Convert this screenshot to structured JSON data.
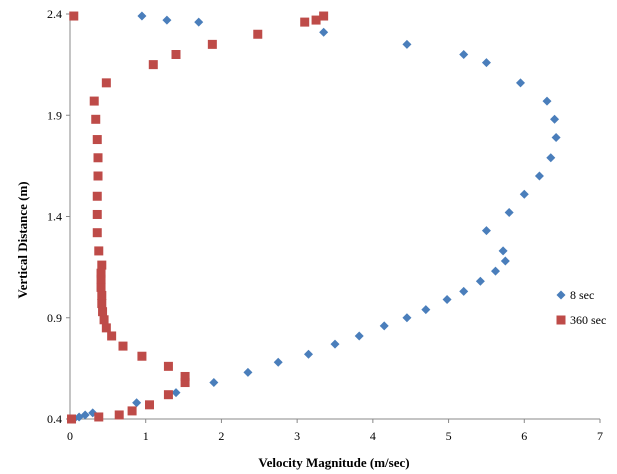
{
  "chart_data": {
    "type": "scatter",
    "xlabel": "Velocity Magnitude  (m/sec)",
    "ylabel": "Vertical Distance (m)",
    "xlim": [
      0,
      7
    ],
    "ylim": [
      0.4,
      2.4
    ],
    "xticks": [
      "0",
      "1",
      "2",
      "3",
      "4",
      "5",
      "6",
      "7"
    ],
    "yticks": [
      "0.4",
      "0.9",
      "1.4",
      "1.9",
      "2.4"
    ],
    "grid": false,
    "legend_position": "right",
    "series": [
      {
        "name": "8 sec",
        "marker": "diamond",
        "color": "#4a7ebb",
        "points": [
          [
            0.05,
            0.4
          ],
          [
            0.12,
            0.41
          ],
          [
            0.2,
            0.42
          ],
          [
            0.3,
            0.43
          ],
          [
            0.88,
            0.48
          ],
          [
            1.4,
            0.53
          ],
          [
            1.9,
            0.58
          ],
          [
            2.35,
            0.63
          ],
          [
            2.75,
            0.68
          ],
          [
            3.15,
            0.72
          ],
          [
            3.5,
            0.77
          ],
          [
            3.82,
            0.81
          ],
          [
            4.15,
            0.86
          ],
          [
            4.45,
            0.9
          ],
          [
            4.7,
            0.94
          ],
          [
            4.98,
            0.99
          ],
          [
            5.2,
            1.03
          ],
          [
            5.42,
            1.08
          ],
          [
            5.62,
            1.13
          ],
          [
            5.75,
            1.18
          ],
          [
            5.72,
            1.23
          ],
          [
            5.5,
            1.33
          ],
          [
            5.8,
            1.42
          ],
          [
            6.0,
            1.51
          ],
          [
            6.2,
            1.6
          ],
          [
            6.35,
            1.69
          ],
          [
            6.42,
            1.79
          ],
          [
            6.4,
            1.88
          ],
          [
            6.3,
            1.97
          ],
          [
            5.95,
            2.06
          ],
          [
            5.5,
            2.16
          ],
          [
            5.2,
            2.2
          ],
          [
            4.45,
            2.25
          ],
          [
            3.35,
            2.31
          ],
          [
            1.7,
            2.36
          ],
          [
            1.28,
            2.37
          ],
          [
            0.95,
            2.39
          ]
        ]
      },
      {
        "name": "360 sec",
        "marker": "square",
        "color": "#be4b48",
        "points": [
          [
            0.02,
            0.4
          ],
          [
            0.38,
            0.41
          ],
          [
            0.65,
            0.42
          ],
          [
            0.82,
            0.44
          ],
          [
            1.05,
            0.47
          ],
          [
            1.3,
            0.52
          ],
          [
            1.52,
            0.58
          ],
          [
            1.52,
            0.61
          ],
          [
            1.3,
            0.66
          ],
          [
            0.95,
            0.71
          ],
          [
            0.7,
            0.76
          ],
          [
            0.55,
            0.81
          ],
          [
            0.48,
            0.85
          ],
          [
            0.45,
            0.89
          ],
          [
            0.43,
            0.93
          ],
          [
            0.42,
            0.97
          ],
          [
            0.42,
            1.01
          ],
          [
            0.41,
            1.05
          ],
          [
            0.41,
            1.09
          ],
          [
            0.41,
            1.12
          ],
          [
            0.42,
            1.16
          ],
          [
            0.38,
            1.23
          ],
          [
            0.36,
            1.32
          ],
          [
            0.36,
            1.41
          ],
          [
            0.36,
            1.5
          ],
          [
            0.37,
            1.6
          ],
          [
            0.37,
            1.69
          ],
          [
            0.36,
            1.78
          ],
          [
            0.34,
            1.88
          ],
          [
            0.32,
            1.97
          ],
          [
            0.48,
            2.06
          ],
          [
            1.1,
            2.15
          ],
          [
            1.4,
            2.2
          ],
          [
            1.88,
            2.25
          ],
          [
            2.48,
            2.3
          ],
          [
            3.1,
            2.36
          ],
          [
            3.25,
            2.37
          ],
          [
            3.35,
            2.39
          ],
          [
            0.05,
            2.39
          ]
        ]
      }
    ]
  }
}
